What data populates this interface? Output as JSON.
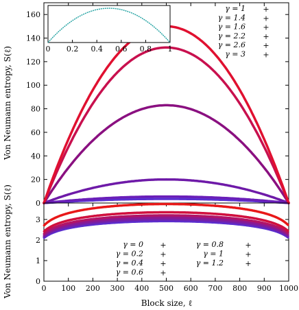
{
  "chart_data": [
    {
      "type": "line",
      "panel": "top",
      "ylabel": "Von Neumann entropy, S(ℓ)",
      "xlim": [
        0,
        1000
      ],
      "ylim": [
        0,
        170
      ],
      "yticks": [
        0,
        20,
        40,
        60,
        80,
        100,
        120,
        140,
        160
      ],
      "ytick_labels": [
        "0",
        "20",
        "40",
        "60",
        "80",
        "100",
        "120",
        "140",
        "160"
      ],
      "legend_position": "top-right",
      "series": [
        {
          "name": "γ = 1",
          "color": "#5a2fd0",
          "shape": "parabola",
          "peak": 3.5
        },
        {
          "name": "γ = 1.4",
          "color": "#6a1fb8",
          "shape": "parabola",
          "peak": 5.5
        },
        {
          "name": "γ = 1.6",
          "color": "#6e1aa8",
          "shape": "parabola",
          "peak": 20
        },
        {
          "name": "γ = 2.2",
          "color": "#8a1080",
          "shape": "parabola",
          "peak": 83
        },
        {
          "name": "γ = 2.6",
          "color": "#c8104e",
          "shape": "parabola",
          "peak": 132
        },
        {
          "name": "γ = 3",
          "color": "#e01030",
          "shape": "parabola",
          "peak": 150
        }
      ],
      "inset": {
        "xlim": [
          0,
          1
        ],
        "xticks": [
          0,
          0.2,
          0.4,
          0.6,
          0.8,
          1
        ],
        "xtick_labels": [
          "0",
          "0.2",
          "0.4",
          "0.6",
          "0.8",
          "1"
        ],
        "series": [
          {
            "color": "#2aa5a5",
            "shape": "parabola"
          }
        ]
      }
    },
    {
      "type": "line",
      "panel": "bottom",
      "xlabel": "Block size, ℓ",
      "ylabel": "Von Neumann entropy, S(ℓ)",
      "xlim": [
        0,
        1000
      ],
      "ylim": [
        0,
        3.8
      ],
      "xticks": [
        0,
        100,
        200,
        300,
        400,
        500,
        600,
        700,
        800,
        900,
        1000
      ],
      "xtick_labels": [
        "0",
        "100",
        "200",
        "300",
        "400",
        "500",
        "600",
        "700",
        "800",
        "900",
        "1000"
      ],
      "yticks": [
        0,
        1,
        2,
        3
      ],
      "ytick_labels": [
        "0",
        "1",
        "2",
        "3"
      ],
      "legend_position": "bottom-center",
      "series": [
        {
          "name": "γ = 0",
          "color": "#5a2fd0",
          "shape": "log",
          "peak": 2.92
        },
        {
          "name": "γ = 0.2",
          "color": "#6228c4",
          "shape": "log",
          "peak": 2.97
        },
        {
          "name": "γ = 0.4",
          "color": "#7420a8",
          "shape": "log",
          "peak": 3.02
        },
        {
          "name": "γ = 0.6",
          "color": "#8c1890",
          "shape": "log",
          "peak": 3.1
        },
        {
          "name": "γ = 0.8",
          "color": "#b01468",
          "shape": "log",
          "peak": 3.2
        },
        {
          "name": "γ = 1",
          "color": "#d0103e",
          "shape": "log",
          "peak": 3.35
        },
        {
          "name": "γ = 1.2",
          "color": "#e81818",
          "shape": "log",
          "peak": 3.75
        }
      ]
    }
  ]
}
